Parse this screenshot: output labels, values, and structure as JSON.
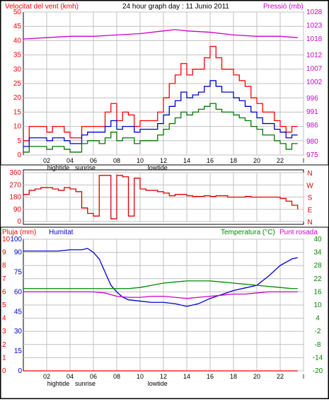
{
  "header": {
    "wind_label": "Velocitat del vent (kmh)",
    "title": "24 hour graph day : 11 Junio 2011",
    "pressure_label": "Pressió (mb)"
  },
  "middle": {
    "dir_letters": [
      "N",
      "W",
      "S",
      "E",
      "N"
    ]
  },
  "bottom_header": {
    "rain_label": "Pluja (mm)",
    "humidity_label": "Humitat",
    "temp_label": "Temperatura (°C)",
    "dew_label": "Punt rosada"
  },
  "x_labels": {
    "hours": [
      "02",
      "04",
      "06",
      "08",
      "10",
      "12",
      "14",
      "16",
      "18",
      "20",
      "22",
      "l"
    ],
    "tide_labels": [
      "hightide",
      "sunrise",
      "lowtide"
    ]
  },
  "colors": {
    "wind_max": "#ff0000",
    "wind_avg": "#0000cc",
    "wind_min": "#007700",
    "pressure": "#cc00cc",
    "direction": "#dd0000",
    "humidity": "#0000cc",
    "temperature": "#008800",
    "dewpoint": "#cc00cc",
    "rain": "#ff0000",
    "grid": "#c0c0c0"
  },
  "chart_data": [
    {
      "type": "line",
      "name": "wind",
      "x_unit": "hour",
      "ylim_left": [
        0,
        50
      ],
      "left_ticks": [
        0,
        5,
        10,
        15,
        20,
        25,
        30,
        35,
        40,
        45,
        50
      ],
      "ylim_right": [
        975,
        1028
      ],
      "right_ticks": [
        975,
        980,
        986,
        991,
        996,
        1002,
        1007,
        1012,
        1018,
        1023,
        1028
      ],
      "series": [
        {
          "key": "gust",
          "x": [
            0,
            0.5,
            1,
            1.5,
            2,
            2.5,
            3,
            3.5,
            4,
            4.5,
            5,
            5.5,
            6,
            6.5,
            7,
            7.5,
            8,
            8.5,
            9,
            9.5,
            10,
            10.5,
            11,
            11.5,
            12,
            12.5,
            13,
            13.5,
            14,
            14.5,
            15,
            15.5,
            16,
            16.5,
            17,
            17.5,
            18,
            18.5,
            19,
            19.5,
            20,
            20.5,
            21,
            21.5,
            22,
            22.5,
            23,
            23.5
          ],
          "y": [
            5,
            10,
            10,
            10,
            8,
            10,
            10,
            8,
            6,
            6,
            10,
            10,
            10,
            10,
            15,
            18,
            12,
            15,
            14,
            10,
            12,
            12,
            12,
            15,
            20,
            25,
            28,
            32,
            28,
            30,
            30,
            34,
            38,
            34,
            30,
            30,
            28,
            26,
            24,
            20,
            18,
            15,
            15,
            12,
            10,
            8,
            10,
            10
          ]
        },
        {
          "key": "avg",
          "x": [
            0,
            0.5,
            1,
            1.5,
            2,
            2.5,
            3,
            3.5,
            4,
            4.5,
            5,
            5.5,
            6,
            6.5,
            7,
            7.5,
            8,
            8.5,
            9,
            9.5,
            10,
            10.5,
            11,
            11.5,
            12,
            12.5,
            13,
            13.5,
            14,
            14.5,
            15,
            15.5,
            16,
            16.5,
            17,
            17.5,
            18,
            18.5,
            19,
            19.5,
            20,
            20.5,
            21,
            21.5,
            22,
            22.5,
            23,
            23.5
          ],
          "y": [
            3,
            6,
            6,
            6,
            5,
            6,
            6,
            5,
            4,
            4,
            7,
            8,
            8,
            8,
            10,
            12,
            9,
            10,
            10,
            8,
            9,
            9,
            9,
            11,
            14,
            17,
            19,
            22,
            20,
            21,
            22,
            24,
            26,
            24,
            22,
            22,
            20,
            19,
            17,
            15,
            13,
            11,
            11,
            9,
            8,
            6,
            7,
            7
          ]
        },
        {
          "key": "min",
          "x": [
            0,
            0.5,
            1,
            1.5,
            2,
            2.5,
            3,
            3.5,
            4,
            4.5,
            5,
            5.5,
            6,
            6.5,
            7,
            7.5,
            8,
            8.5,
            9,
            9.5,
            10,
            10.5,
            11,
            11.5,
            12,
            12.5,
            13,
            13.5,
            14,
            14.5,
            15,
            15.5,
            16,
            16.5,
            17,
            17.5,
            18,
            18.5,
            19,
            19.5,
            20,
            20.5,
            21,
            21.5,
            22,
            22.5,
            23,
            23.5
          ],
          "y": [
            1,
            3,
            3,
            3,
            2,
            3,
            3,
            2,
            1,
            1,
            4,
            5,
            5,
            4,
            6,
            8,
            5,
            6,
            6,
            4,
            5,
            5,
            5,
            7,
            9,
            11,
            13,
            15,
            14,
            15,
            16,
            17,
            18,
            16,
            15,
            15,
            14,
            13,
            12,
            10,
            9,
            7,
            7,
            5,
            4,
            2,
            4,
            4
          ]
        },
        {
          "key": "pressure",
          "axis": "right",
          "x": [
            0,
            2,
            4,
            6,
            8,
            10,
            12,
            13,
            14,
            16,
            18,
            20,
            22,
            23.5
          ],
          "y": [
            1018,
            1018.5,
            1019,
            1019,
            1019.5,
            1020,
            1021,
            1021.5,
            1021,
            1020.5,
            1019.5,
            1019,
            1019,
            1018.5
          ]
        }
      ]
    },
    {
      "type": "line",
      "name": "wind direction",
      "x_unit": "hour",
      "ylim": [
        0,
        360
      ],
      "ticks": [
        0,
        90,
        180,
        270,
        360
      ],
      "x": [
        0,
        0.5,
        1,
        1.5,
        2,
        2.5,
        3,
        3.5,
        4,
        4.5,
        5,
        5.5,
        6,
        6.5,
        7,
        7.5,
        8,
        8.5,
        9,
        9.5,
        10,
        10.5,
        11,
        11.5,
        12,
        12.5,
        13,
        13.5,
        14,
        14.5,
        15,
        15.5,
        16,
        16.5,
        17,
        17.5,
        18,
        18.5,
        19,
        19.5,
        20,
        20.5,
        21,
        21.5,
        22,
        22.5,
        23,
        23.5
      ],
      "y": [
        200,
        230,
        240,
        250,
        250,
        240,
        230,
        250,
        240,
        220,
        100,
        60,
        40,
        340,
        340,
        20,
        340,
        330,
        40,
        320,
        240,
        230,
        230,
        220,
        210,
        190,
        200,
        200,
        190,
        185,
        185,
        190,
        185,
        190,
        190,
        180,
        180,
        180,
        185,
        180,
        180,
        180,
        180,
        180,
        170,
        150,
        120,
        90
      ]
    },
    {
      "type": "line",
      "name": "humidity rain temperature",
      "x_unit": "hour",
      "left_rain_ticks": [
        0,
        1,
        2,
        3,
        4,
        5,
        6,
        7,
        8,
        9,
        10
      ],
      "left_hum_ticks": [
        0,
        15,
        30,
        45,
        60,
        75,
        90,
        100
      ],
      "ylim_temp": [
        -20,
        40
      ],
      "right_ticks": [
        -20,
        -14,
        -8,
        -2,
        4,
        10,
        16,
        22,
        28,
        34,
        40
      ],
      "series": [
        {
          "key": "humidity",
          "x": [
            0,
            1,
            2,
            3,
            4,
            5,
            5.5,
            6,
            6.5,
            7,
            7.5,
            8,
            8.5,
            9,
            10,
            11,
            12,
            13,
            14,
            15,
            16,
            17,
            18,
            19,
            20,
            21,
            22,
            23,
            23.5
          ],
          "y": [
            91,
            91,
            91,
            91,
            92,
            92,
            93,
            90,
            85,
            75,
            65,
            60,
            56,
            54,
            53,
            52,
            52,
            51,
            49,
            51,
            55,
            58,
            61,
            63,
            65,
            72,
            80,
            85,
            86
          ]
        },
        {
          "key": "temperature",
          "x": [
            0,
            1,
            2,
            3,
            4,
            5,
            6,
            7,
            8,
            9,
            10,
            11,
            12,
            13,
            14,
            15,
            16,
            17,
            18,
            19,
            20,
            21,
            22,
            23,
            23.5
          ],
          "y": [
            17.5,
            17.5,
            17.5,
            17.5,
            17.5,
            17.5,
            17.5,
            17.5,
            17.5,
            17.5,
            18,
            19,
            20,
            20.5,
            21,
            21,
            21,
            20.5,
            20,
            19.5,
            19,
            18.5,
            18,
            17.5,
            17.5
          ]
        },
        {
          "key": "dewpoint",
          "x": [
            0,
            1,
            2,
            3,
            4,
            5,
            6,
            7,
            8,
            9,
            10,
            11,
            12,
            13,
            14,
            15,
            16,
            17,
            18,
            19,
            20,
            21,
            22,
            23,
            23.5
          ],
          "y": [
            16,
            16,
            16,
            16,
            16,
            16,
            16,
            15.5,
            14,
            13.5,
            13.5,
            14,
            14,
            13.5,
            13,
            13.5,
            14,
            14.5,
            15,
            15,
            15.5,
            16,
            16,
            16,
            16
          ]
        },
        {
          "key": "rain",
          "x": [
            0,
            23.5
          ],
          "y": [
            0,
            0
          ]
        }
      ]
    }
  ]
}
